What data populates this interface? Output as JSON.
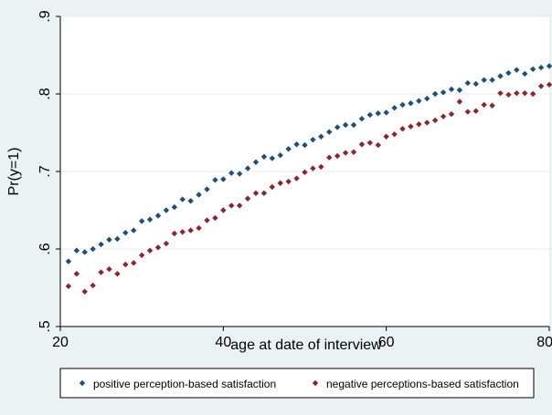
{
  "chart_data": {
    "type": "scatter",
    "title": "",
    "xlabel": "age at date of interview",
    "ylabel": "Pr(y=1)",
    "xlim": [
      20,
      80
    ],
    "ylim": [
      0.5,
      0.9
    ],
    "x_ticks": [
      20,
      40,
      60,
      80
    ],
    "x_tick_labels": [
      "20",
      "40",
      "60",
      "80"
    ],
    "y_ticks": [
      0.5,
      0.6,
      0.7,
      0.8,
      0.9
    ],
    "y_tick_labels": [
      ".5",
      ".6",
      ".7",
      ".8",
      ".9"
    ],
    "grid": "horizontal",
    "legend_position": "bottom",
    "colors": {
      "positive": "#1f4e79",
      "negative": "#8b2631",
      "plot_bg": "#ffffff",
      "outer_bg": "#eaf2f3"
    },
    "series": [
      {
        "name": "positive perception-based satisfaction",
        "x": [
          21,
          22,
          23,
          24,
          25,
          26,
          27,
          28,
          29,
          30,
          31,
          32,
          33,
          34,
          35,
          36,
          37,
          38,
          39,
          40,
          41,
          42,
          43,
          44,
          45,
          46,
          47,
          48,
          49,
          50,
          51,
          52,
          53,
          54,
          55,
          56,
          57,
          58,
          59,
          60,
          61,
          62,
          63,
          64,
          65,
          66,
          67,
          68,
          69,
          70,
          71,
          72,
          73,
          74,
          75,
          76,
          77,
          78,
          79,
          80
        ],
        "y": [
          0.584,
          0.598,
          0.596,
          0.6,
          0.606,
          0.612,
          0.613,
          0.621,
          0.624,
          0.636,
          0.638,
          0.643,
          0.65,
          0.654,
          0.664,
          0.662,
          0.67,
          0.677,
          0.689,
          0.69,
          0.698,
          0.697,
          0.704,
          0.712,
          0.719,
          0.717,
          0.721,
          0.729,
          0.735,
          0.734,
          0.741,
          0.745,
          0.751,
          0.757,
          0.76,
          0.76,
          0.768,
          0.773,
          0.775,
          0.776,
          0.782,
          0.786,
          0.788,
          0.791,
          0.794,
          0.8,
          0.802,
          0.806,
          0.805,
          0.814,
          0.813,
          0.818,
          0.818,
          0.823,
          0.827,
          0.831,
          0.826,
          0.832,
          0.834,
          0.836
        ]
      },
      {
        "name": "negative perceptions-based satisfaction",
        "x": [
          21,
          22,
          23,
          24,
          25,
          26,
          27,
          28,
          29,
          30,
          31,
          32,
          33,
          34,
          35,
          36,
          37,
          38,
          39,
          40,
          41,
          42,
          43,
          44,
          45,
          46,
          47,
          48,
          49,
          50,
          51,
          52,
          53,
          54,
          55,
          56,
          57,
          58,
          59,
          60,
          61,
          62,
          63,
          64,
          65,
          66,
          67,
          68,
          69,
          70,
          71,
          72,
          73,
          74,
          75,
          76,
          77,
          78,
          79,
          80
        ],
        "y": [
          0.552,
          0.568,
          0.545,
          0.553,
          0.57,
          0.574,
          0.568,
          0.58,
          0.582,
          0.592,
          0.598,
          0.602,
          0.607,
          0.62,
          0.622,
          0.624,
          0.627,
          0.637,
          0.64,
          0.65,
          0.656,
          0.656,
          0.665,
          0.672,
          0.672,
          0.68,
          0.685,
          0.687,
          0.691,
          0.699,
          0.704,
          0.706,
          0.718,
          0.72,
          0.724,
          0.725,
          0.735,
          0.737,
          0.734,
          0.745,
          0.748,
          0.755,
          0.758,
          0.761,
          0.763,
          0.766,
          0.771,
          0.774,
          0.79,
          0.777,
          0.778,
          0.786,
          0.785,
          0.801,
          0.799,
          0.801,
          0.801,
          0.8,
          0.81,
          0.812
        ]
      }
    ]
  }
}
